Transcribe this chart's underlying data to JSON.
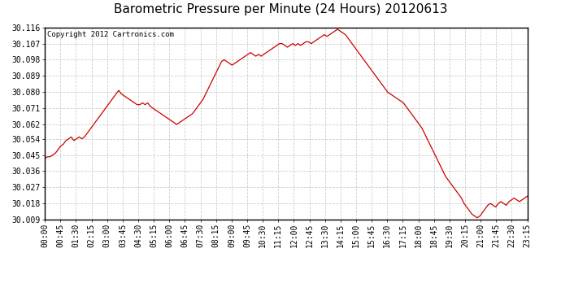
{
  "title": "Barometric Pressure per Minute (24 Hours) 20120613",
  "copyright": "Copyright 2012 Cartronics.com",
  "line_color": "#cc0000",
  "background_color": "#ffffff",
  "plot_bg_color": "#ffffff",
  "grid_color": "#c8c8c8",
  "ylim": [
    30.009,
    30.116
  ],
  "yticks": [
    30.009,
    30.018,
    30.027,
    30.036,
    30.045,
    30.054,
    30.062,
    30.071,
    30.08,
    30.089,
    30.098,
    30.107,
    30.116
  ],
  "xtick_labels": [
    "00:00",
    "00:45",
    "01:30",
    "02:15",
    "03:00",
    "03:45",
    "04:30",
    "05:15",
    "06:00",
    "06:45",
    "07:30",
    "08:15",
    "09:00",
    "09:45",
    "10:30",
    "11:15",
    "12:00",
    "12:45",
    "13:30",
    "14:15",
    "15:00",
    "15:45",
    "16:30",
    "17:15",
    "18:00",
    "18:45",
    "19:30",
    "20:15",
    "21:00",
    "21:45",
    "22:30",
    "23:15"
  ],
  "title_fontsize": 11,
  "tick_fontsize": 7,
  "copyright_fontsize": 6.5,
  "pressure_data": [
    30.043,
    30.044,
    30.044,
    30.045,
    30.046,
    30.048,
    30.05,
    30.051,
    30.053,
    30.054,
    30.055,
    30.053,
    30.054,
    30.055,
    30.054,
    30.055,
    30.057,
    30.059,
    30.061,
    30.063,
    30.065,
    30.067,
    30.069,
    30.071,
    30.073,
    30.075,
    30.077,
    30.079,
    30.081,
    30.079,
    30.078,
    30.077,
    30.076,
    30.075,
    30.074,
    30.073,
    30.073,
    30.074,
    30.073,
    30.074,
    30.072,
    30.071,
    30.07,
    30.069,
    30.068,
    30.067,
    30.066,
    30.065,
    30.064,
    30.063,
    30.062,
    30.063,
    30.064,
    30.065,
    30.066,
    30.067,
    30.068,
    30.07,
    30.072,
    30.074,
    30.076,
    30.079,
    30.082,
    30.085,
    30.088,
    30.091,
    30.094,
    30.097,
    30.098,
    30.097,
    30.096,
    30.095,
    30.096,
    30.097,
    30.098,
    30.099,
    30.1,
    30.101,
    30.102,
    30.101,
    30.1,
    30.101,
    30.1,
    30.101,
    30.102,
    30.103,
    30.104,
    30.105,
    30.106,
    30.107,
    30.107,
    30.106,
    30.105,
    30.106,
    30.107,
    30.106,
    30.107,
    30.106,
    30.107,
    30.108,
    30.108,
    30.107,
    30.108,
    30.109,
    30.11,
    30.111,
    30.112,
    30.111,
    30.112,
    30.113,
    30.114,
    30.115,
    30.114,
    30.113,
    30.112,
    30.11,
    30.108,
    30.106,
    30.104,
    30.102,
    30.1,
    30.098,
    30.096,
    30.094,
    30.092,
    30.09,
    30.088,
    30.086,
    30.084,
    30.082,
    30.08,
    30.079,
    30.078,
    30.077,
    30.076,
    30.075,
    30.074,
    30.072,
    30.07,
    30.068,
    30.066,
    30.064,
    30.062,
    30.06,
    30.057,
    30.054,
    30.051,
    30.048,
    30.045,
    30.042,
    30.039,
    30.036,
    30.033,
    30.031,
    30.029,
    30.027,
    30.025,
    30.023,
    30.021,
    30.018,
    30.016,
    30.014,
    30.012,
    30.011,
    30.01,
    30.011,
    30.013,
    30.015,
    30.017,
    30.018,
    30.017,
    30.016,
    30.018,
    30.019,
    30.018,
    30.017,
    30.019,
    30.02,
    30.021,
    30.02,
    30.019,
    30.02,
    30.021,
    30.022
  ]
}
